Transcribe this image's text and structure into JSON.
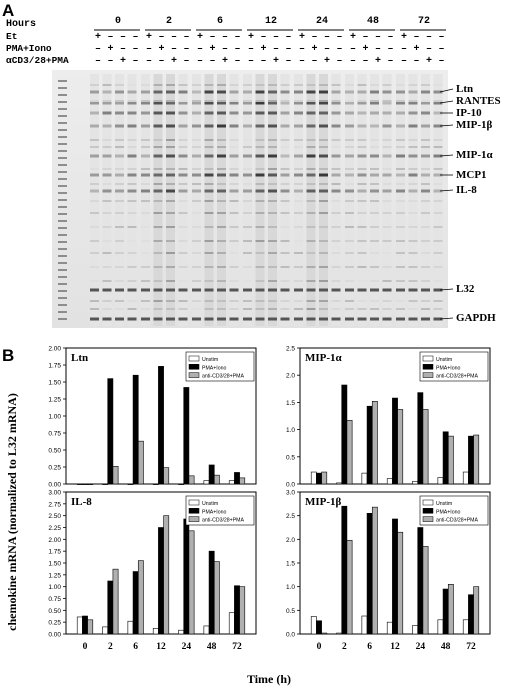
{
  "panel_a": {
    "panel_letter": "A",
    "hours_label": "Hours",
    "timepoints": [
      "0",
      "2",
      "6",
      "12",
      "24",
      "48",
      "72"
    ],
    "conditions": [
      {
        "label": "Et",
        "marks": [
          "+",
          "–",
          "–",
          "–"
        ]
      },
      {
        "label": "PMA+Iono",
        "marks": [
          "–",
          "+",
          "–",
          "–"
        ]
      },
      {
        "label": "αCD3/28+PMA",
        "marks": [
          "–",
          "–",
          "+",
          "–"
        ]
      }
    ],
    "band_labels": [
      "Ltn",
      "RANTES",
      "IP-10",
      "MIP-1β",
      "MIP-1α",
      "MCP1",
      "IL-8",
      "L32",
      "GAPDH"
    ]
  },
  "panel_b": {
    "panel_letter": "B",
    "ylabel": "chemokine mRNA (normalized to L32 mRNA)",
    "xlabel": "Time (h)"
  },
  "chart_data": [
    {
      "type": "bar",
      "title": "Ltn",
      "categories": [
        "0",
        "2",
        "6",
        "12",
        "24",
        "48",
        "72"
      ],
      "ylim": [
        0,
        2.0
      ],
      "yticks": [
        "0.00",
        "0.25",
        "0.50",
        "0.75",
        "1.00",
        "1.25",
        "1.50",
        "1.75",
        "2.00"
      ],
      "legend": "top-right",
      "series": [
        {
          "name": "Unstim",
          "color": "#ffffff",
          "values": [
            0,
            0,
            0,
            0,
            0,
            0.05,
            0.05
          ]
        },
        {
          "name": "PMA+Iono",
          "color": "#000000",
          "values": [
            0,
            1.55,
            1.6,
            1.73,
            1.42,
            0.28,
            0.17
          ]
        },
        {
          "name": "anti-CD3/28+PMA",
          "color": "#b0b0b0",
          "values": [
            0,
            0.26,
            0.63,
            0.24,
            0.12,
            0.13,
            0.09
          ]
        }
      ]
    },
    {
      "type": "bar",
      "title": "MIP-1α",
      "categories": [
        "0",
        "2",
        "6",
        "12",
        "24",
        "48",
        "72"
      ],
      "ylim": [
        0,
        2.5
      ],
      "yticks": [
        "0.0",
        "0.5",
        "1.0",
        "1.5",
        "2.0",
        "2.5"
      ],
      "legend": "top-right",
      "series": [
        {
          "name": "Unstim",
          "color": "#ffffff",
          "values": [
            0.22,
            0.02,
            0.2,
            0.1,
            0.05,
            0.12,
            0.22
          ]
        },
        {
          "name": "PMA+Iono",
          "color": "#000000",
          "values": [
            0.2,
            1.82,
            1.43,
            1.58,
            1.68,
            0.96,
            0.88
          ]
        },
        {
          "name": "anti-CD3/28+PMA",
          "color": "#b0b0b0",
          "values": [
            0.22,
            1.17,
            1.52,
            1.37,
            1.37,
            0.88,
            0.9
          ]
        }
      ]
    },
    {
      "type": "bar",
      "title": "IL-8",
      "categories": [
        "0",
        "2",
        "6",
        "12",
        "24",
        "48",
        "72"
      ],
      "ylim": [
        0,
        3.0
      ],
      "yticks": [
        "0.00",
        "0.25",
        "0.50",
        "0.75",
        "1.00",
        "1.25",
        "1.50",
        "1.75",
        "2.00",
        "2.25",
        "2.50",
        "2.75",
        "3.00"
      ],
      "legend": "top-right",
      "series": [
        {
          "name": "Unstim",
          "color": "#ffffff",
          "values": [
            0.36,
            0.15,
            0.27,
            0.12,
            0.08,
            0.17,
            0.45
          ]
        },
        {
          "name": "PMA+Iono",
          "color": "#000000",
          "values": [
            0.38,
            1.12,
            1.32,
            2.25,
            2.43,
            1.75,
            1.02
          ]
        },
        {
          "name": "anti-CD3/28+PMA",
          "color": "#b0b0b0",
          "values": [
            0.3,
            1.37,
            1.55,
            2.5,
            2.18,
            1.53,
            1.0
          ]
        }
      ]
    },
    {
      "type": "bar",
      "title": "MIP-1β",
      "categories": [
        "0",
        "2",
        "6",
        "12",
        "24",
        "48",
        "72"
      ],
      "ylim": [
        0,
        3.0
      ],
      "yticks": [
        "0.0",
        "0.5",
        "1.0",
        "1.5",
        "2.0",
        "2.5",
        "3.0"
      ],
      "legend": "top-right",
      "series": [
        {
          "name": "Unstim",
          "color": "#ffffff",
          "values": [
            0.37,
            0.02,
            0.38,
            0.25,
            0.18,
            0.3,
            0.3
          ]
        },
        {
          "name": "PMA+Iono",
          "color": "#000000",
          "values": [
            0.28,
            2.7,
            2.55,
            2.43,
            2.25,
            0.95,
            0.83
          ]
        },
        {
          "name": "anti-CD3/28+PMA",
          "color": "#b0b0b0",
          "values": [
            0.02,
            1.98,
            2.68,
            2.15,
            1.85,
            1.05,
            1.0
          ]
        }
      ]
    }
  ]
}
